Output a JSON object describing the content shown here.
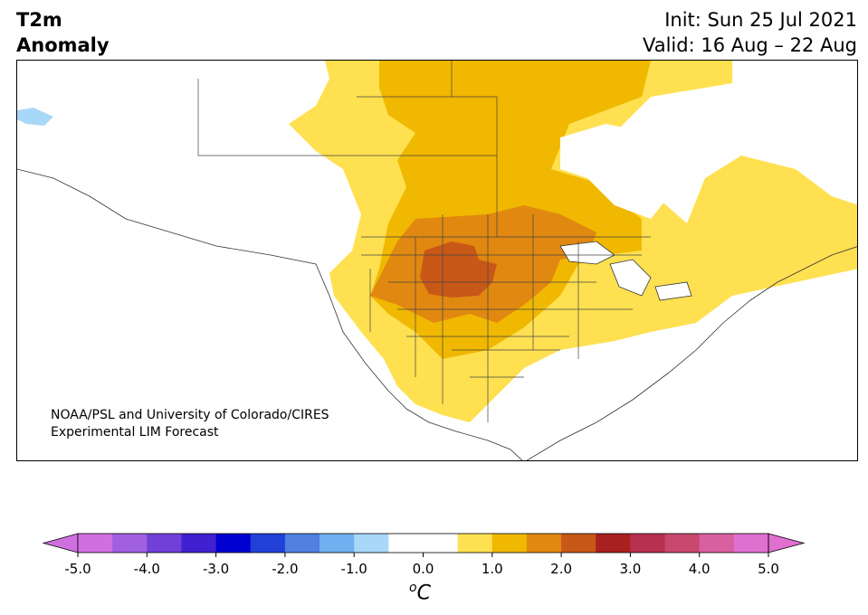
{
  "header": {
    "title_line1": "T2m",
    "title_line2": "Anomaly",
    "init": "Init: Sun 25 Jul 2021",
    "valid": "Valid: 16 Aug – 22 Aug"
  },
  "map": {
    "credit_line1": "NOAA/PSL and University of Colorado/CIRES",
    "credit_line2": "Experimental LIM Forecast"
  },
  "colorbar": {
    "tick_labels": [
      "-5.0",
      "-4.0",
      "-3.0",
      "-2.0",
      "-1.0",
      "0.0",
      "1.0",
      "2.0",
      "3.0",
      "4.0",
      "5.0"
    ],
    "unit_base": "C",
    "unit_sup": "o",
    "colors": [
      "#d070e0",
      "#a060e0",
      "#7040d8",
      "#4020d0",
      "#0000d0",
      "#2040d8",
      "#5080e0",
      "#70b0f0",
      "#a8d8f8",
      "#ffffff",
      "#ffffff",
      "#ffe050",
      "#f0b800",
      "#e08810",
      "#c85818",
      "#a82020",
      "#b83050",
      "#c84870",
      "#d860a0",
      "#e070d0"
    ]
  }
}
